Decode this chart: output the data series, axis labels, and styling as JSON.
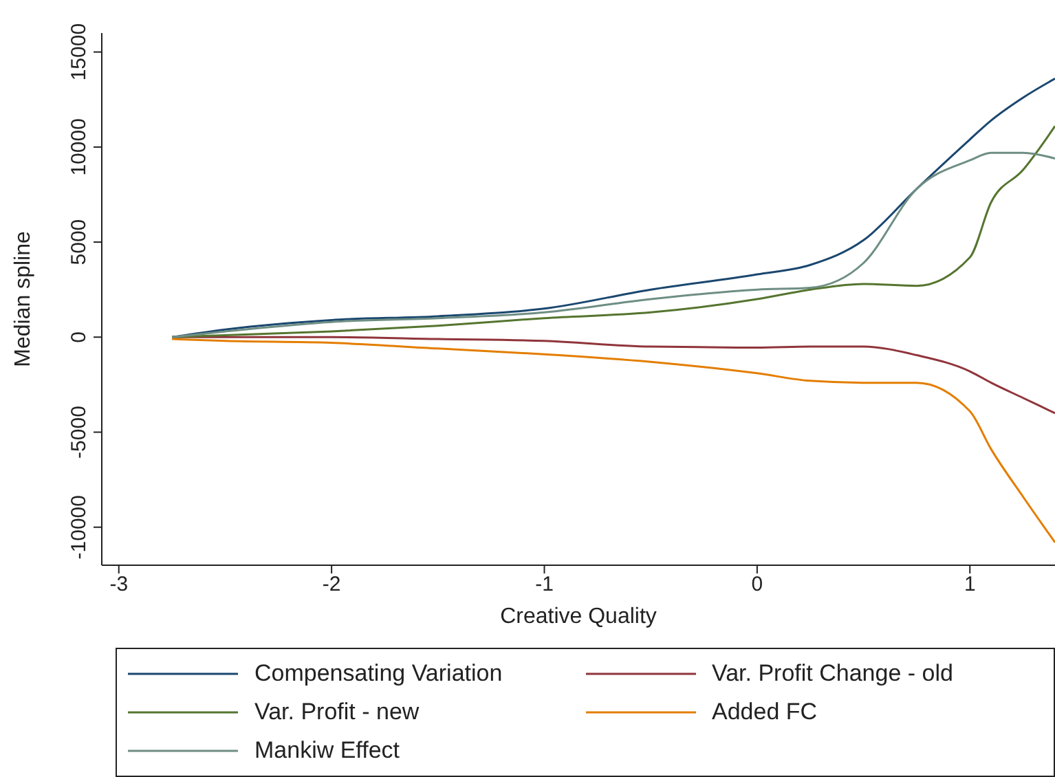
{
  "chart_data": {
    "type": "line",
    "xlabel": "Creative Quality",
    "ylabel": "Median spline",
    "x": [
      -2.75,
      -2.5,
      -2,
      -1.5,
      -1,
      -0.5,
      0,
      0.25,
      0.5,
      0.75,
      1,
      1.1,
      1.25,
      1.4
    ],
    "series": [
      {
        "name": "Compensating Variation",
        "color": "#1a476f",
        "values": [
          0,
          400,
          900,
          1100,
          1500,
          2500,
          3300,
          3800,
          5100,
          7800,
          10400,
          11400,
          12600,
          13600
        ]
      },
      {
        "name": "Var. Profit Change - old",
        "color": "#90353b",
        "values": [
          0,
          0,
          0,
          -100,
          -200,
          -500,
          -550,
          -500,
          -500,
          -950,
          -1800,
          -2400,
          -3200,
          -4000
        ]
      },
      {
        "name": "Var. Profit - new",
        "color": "#55752f",
        "values": [
          0,
          100,
          300,
          600,
          1000,
          1300,
          2000,
          2500,
          2800,
          2700,
          4200,
          7100,
          8800,
          11100
        ]
      },
      {
        "name": "Added FC",
        "color": "#e37e00",
        "values": [
          -100,
          -200,
          -300,
          -600,
          -900,
          -1300,
          -1900,
          -2300,
          -2400,
          -2400,
          -3900,
          -5900,
          -8400,
          -10800
        ]
      },
      {
        "name": "Mankiw Effect",
        "color": "#6e8e84",
        "values": [
          0,
          300,
          800,
          1000,
          1300,
          2000,
          2500,
          2600,
          3900,
          7800,
          9300,
          9700,
          9700,
          9400
        ]
      }
    ],
    "xlim": [
      -3.08,
      1.4
    ],
    "ylim": [
      -12000,
      16000
    ],
    "xticks": [
      -3,
      -2,
      -1,
      0,
      1
    ],
    "yticks": [
      -10000,
      -5000,
      0,
      5000,
      10000,
      15000
    ],
    "grid": false,
    "legend": "bottom",
    "marker": "none",
    "line_style": "solid"
  }
}
